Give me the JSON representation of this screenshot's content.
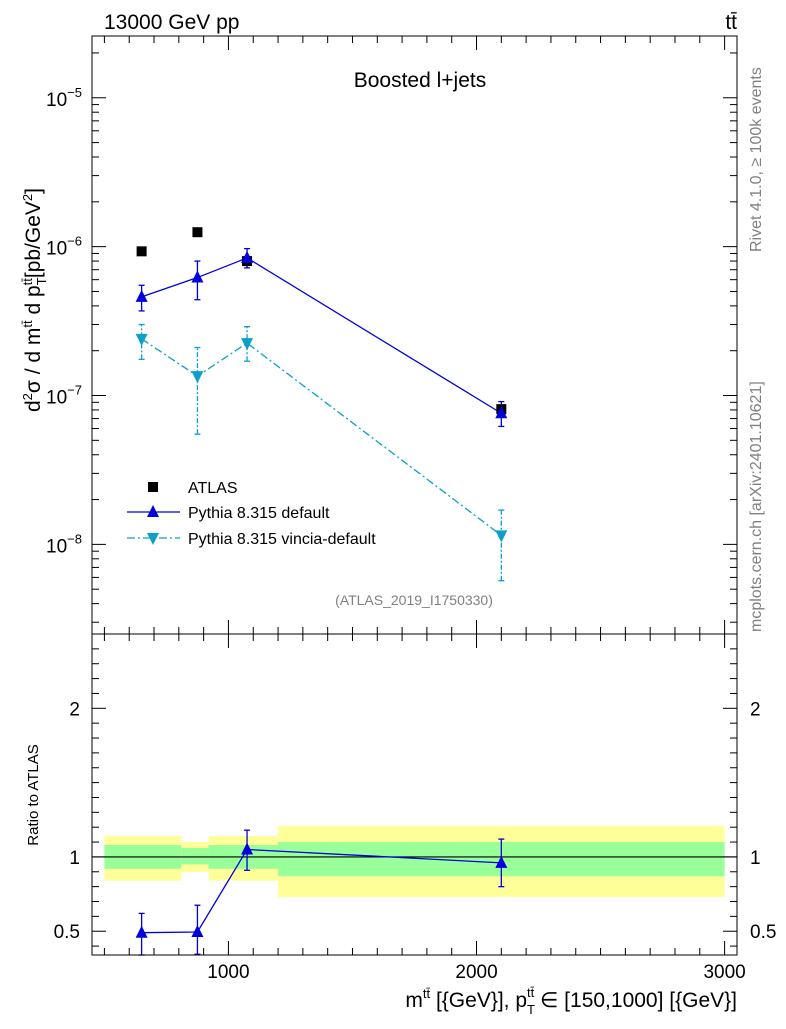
{
  "header": {
    "energy_label": "13000 GeV pp",
    "process_label": "tt̄"
  },
  "side_labels": {
    "rivet": "Rivet 4.1.0, ≥ 100k events",
    "mcplots": "mcplots.cern.ch [arXiv:2401.10621]"
  },
  "colors": {
    "data": "#000000",
    "pythia_default": "#0000dd",
    "vincia": "#0aa0c8",
    "band_inner": "#99ff99",
    "band_outer": "#ffff99"
  },
  "chart_data": [
    {
      "type": "scatter",
      "panel": "main",
      "title": "Boosted l+jets",
      "analysis_id": "(ATLAS_2019_I1750330)",
      "xlabel": "m^{tt̄} [{GeV}], p_T^{tt̄} ∈ [150,1000] [{GeV}]",
      "ylabel": "d²σ / d m^{tt̄} d p_T^{tt̄} [pb/GeV²]",
      "yscale": "log",
      "xlim": [
        450,
        3050
      ],
      "ylim": [
        2.5e-09,
        2.6e-05
      ],
      "ytick_labels": [
        {
          "base": "10",
          "exp": "−5",
          "value": 1e-05
        },
        {
          "base": "10",
          "exp": "−6",
          "value": 1e-06
        },
        {
          "base": "10",
          "exp": "−7",
          "value": 1e-07
        },
        {
          "base": "10",
          "exp": "−8",
          "value": 1e-08
        }
      ],
      "legend_position": "bottom-left",
      "series": [
        {
          "name": "ATLAS",
          "marker": "square",
          "x": [
            650,
            875,
            1075,
            2100
          ],
          "y": [
            9.3e-07,
            1.25e-06,
            8e-07,
            8.1e-08
          ],
          "yerr_low": [
            3e-08,
            5e-08,
            8e-08,
            6e-09
          ],
          "yerr_high": [
            3e-08,
            5e-08,
            8e-08,
            6e-09
          ]
        },
        {
          "name": "Pythia 8.315 default",
          "marker": "triangle-up",
          "line": "solid",
          "x": [
            650,
            875,
            1075,
            2100
          ],
          "y": [
            4.6e-07,
            6.2e-07,
            8.4e-07,
            7.6e-08
          ],
          "yerr_low": [
            9e-08,
            1.8e-07,
            1.2e-07,
            1.4e-08
          ],
          "yerr_high": [
            9e-08,
            1.8e-07,
            1.3e-07,
            1.5e-08
          ]
        },
        {
          "name": "Pythia 8.315 vincia-default",
          "marker": "triangle-down",
          "line": "dashdot",
          "x": [
            650,
            875,
            1075,
            2100
          ],
          "y": [
            2.4e-07,
            1.35e-07,
            2.25e-07,
            1.15e-08
          ],
          "yerr_low": [
            6.5e-08,
            8e-08,
            5.5e-08,
            5.8e-09
          ],
          "yerr_high": [
            6e-08,
            7.5e-08,
            6.5e-08,
            5.5e-09
          ]
        }
      ]
    },
    {
      "type": "scatter",
      "panel": "ratio",
      "ylabel": "Ratio to ATLAS",
      "xlim": [
        450,
        3050
      ],
      "ylim": [
        0.34,
        2.5
      ],
      "ytick_labels": [
        "2",
        "1",
        "0.5"
      ],
      "ytick_values": [
        2,
        1,
        0.5
      ],
      "xtick_labels": [
        "1000",
        "2000",
        "3000"
      ],
      "xtick_values": [
        1000,
        2000,
        3000
      ],
      "reference_line": 1,
      "bands": [
        {
          "x_low": 500,
          "x_high": 810,
          "inner": [
            0.92,
            1.08
          ],
          "outer": [
            0.84,
            1.14
          ]
        },
        {
          "x_low": 810,
          "x_high": 920,
          "inner": [
            0.95,
            1.06
          ],
          "outer": [
            0.9,
            1.1
          ]
        },
        {
          "x_low": 920,
          "x_high": 1200,
          "inner": [
            0.92,
            1.08
          ],
          "outer": [
            0.84,
            1.14
          ]
        },
        {
          "x_low": 1200,
          "x_high": 3000,
          "inner": [
            0.87,
            1.1
          ],
          "outer": [
            0.73,
            1.21
          ]
        }
      ],
      "series": [
        {
          "name": "Pythia 8.315 default",
          "x": [
            650,
            875,
            1075,
            2100
          ],
          "y": [
            0.49,
            0.495,
            1.05,
            0.96
          ],
          "yerr_low": [
            0.15,
            0.15,
            0.14,
            0.16
          ],
          "yerr_high": [
            0.13,
            0.18,
            0.13,
            0.16
          ]
        }
      ]
    }
  ]
}
